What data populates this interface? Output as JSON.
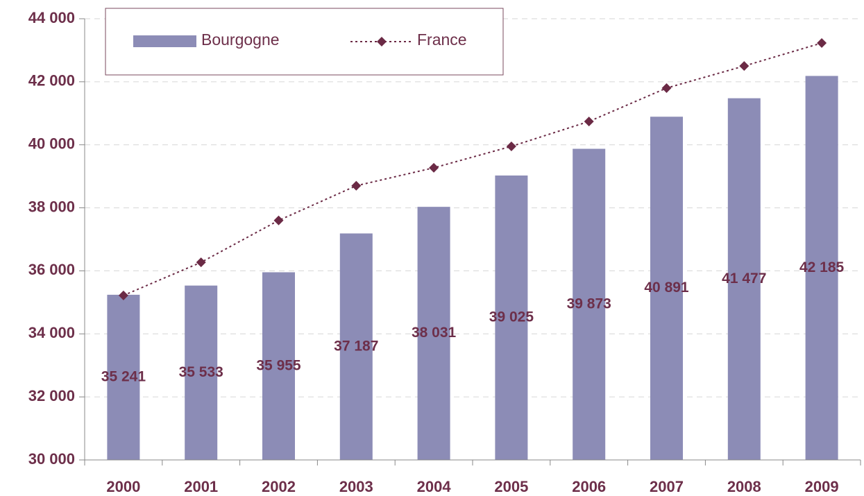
{
  "chart_data": {
    "type": "bar",
    "categories": [
      "2000",
      "2001",
      "2002",
      "2003",
      "2004",
      "2005",
      "2006",
      "2007",
      "2008",
      "2009"
    ],
    "series": [
      {
        "name": "Bourgogne",
        "type": "bar",
        "color": "#8c8cb6",
        "values": [
          35241,
          35533,
          35955,
          37187,
          38031,
          39025,
          39873,
          40891,
          41477,
          42185
        ],
        "value_labels": [
          "35 241",
          "35 533",
          "35 955",
          "37 187",
          "38 031",
          "39 025",
          "39 873",
          "40 891",
          "41 477",
          "42 185"
        ]
      },
      {
        "name": "France",
        "type": "line",
        "color": "#6b2a45",
        "values": [
          35220,
          36270,
          37600,
          38700,
          39270,
          39950,
          40740,
          41800,
          42500,
          43230
        ]
      }
    ],
    "ylim": [
      30000,
      44000
    ],
    "yticks": [
      {
        "value": 30000,
        "label": "30 000"
      },
      {
        "value": 32000,
        "label": "32 000"
      },
      {
        "value": 34000,
        "label": "34 000"
      },
      {
        "value": 36000,
        "label": "36 000"
      },
      {
        "value": 38000,
        "label": "38 000"
      },
      {
        "value": 40000,
        "label": "40 000"
      },
      {
        "value": 42000,
        "label": "42 000"
      },
      {
        "value": 44000,
        "label": "44 000"
      }
    ],
    "grid": true,
    "legend": "top-left"
  }
}
